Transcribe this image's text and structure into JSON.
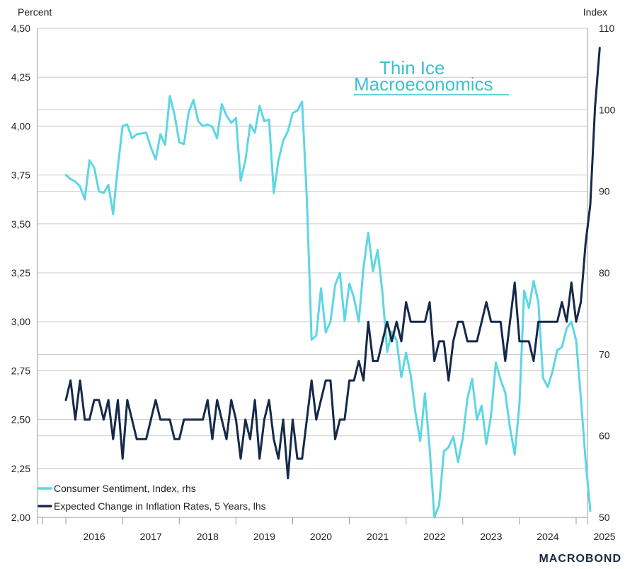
{
  "colors": {
    "sentiment": "#5dd6e4",
    "inflation": "#15294a",
    "grid": "#c8c8c8",
    "logo": "#3cbfd1",
    "brand": "#1a2a3e"
  },
  "logo": {
    "line1": "Thin Ice",
    "line2": "Macroeconomics"
  },
  "brand": "MACROBOND",
  "chart_data": {
    "type": "line",
    "left_axis": {
      "title": "Percent",
      "range": [
        2.0,
        4.5
      ],
      "ticks": [
        "4,50",
        "4,25",
        "4,00",
        "3,75",
        "3,50",
        "3,25",
        "3,00",
        "2,75",
        "2,50",
        "2,25",
        "2,00"
      ],
      "tick_values": [
        4.5,
        4.25,
        4.0,
        3.75,
        3.5,
        3.25,
        3.0,
        2.75,
        2.5,
        2.25,
        2.0
      ]
    },
    "right_axis": {
      "title": "Index",
      "range": [
        50,
        110
      ],
      "ticks": [
        "110",
        "100",
        "90",
        "80",
        "70",
        "60",
        "50"
      ],
      "tick_values": [
        110,
        100,
        90,
        80,
        70,
        60,
        50
      ]
    },
    "x_axis": {
      "range": [
        2015.5,
        2025.2
      ],
      "year_labels": [
        "2016",
        "2017",
        "2018",
        "2019",
        "2020",
        "2021",
        "2022",
        "2023",
        "2024",
        "2025"
      ],
      "year_centers": [
        2016.5,
        2017.5,
        2018.5,
        2019.5,
        2020.5,
        2021.5,
        2022.5,
        2023.5,
        2024.5,
        2025.5
      ],
      "boundaries": [
        2016,
        2017,
        2018,
        2019,
        2020,
        2021,
        2022,
        2023,
        2024,
        2025
      ]
    },
    "legend": [
      {
        "name": "Consumer Sentiment, Index, rhs",
        "series": "sentiment"
      },
      {
        "name": "Expected Change in Inflation Rates, 5 Years, lhs",
        "series": "inflation"
      }
    ],
    "series": [
      {
        "name": "Consumer Sentiment, Index, rhs",
        "key": "sentiment",
        "axis": "right",
        "start": 2016.0,
        "step": 0.08333,
        "values": [
          92.0,
          91.5,
          91.2,
          90.6,
          89.0,
          93.8,
          92.9,
          90.0,
          89.8,
          90.8,
          87.2,
          93.0,
          98.0,
          98.2,
          96.5,
          97.0,
          97.1,
          97.2,
          95.4,
          93.9,
          97.0,
          95.7,
          101.7,
          99.4,
          96.0,
          95.8,
          99.7,
          101.2,
          98.6,
          98.0,
          98.2,
          97.9,
          96.5,
          100.7,
          99.3,
          98.4,
          99.0,
          91.3,
          93.8,
          98.2,
          97.2,
          100.5,
          98.6,
          98.8,
          89.8,
          93.8,
          96.2,
          97.4,
          99.6,
          99.9,
          101.0,
          89.1,
          71.8,
          72.3,
          78.1,
          72.7,
          74.0,
          78.5,
          80.0,
          74.1,
          78.7,
          76.9,
          74.0,
          80.7,
          84.9,
          80.2,
          82.8,
          77.6,
          70.3,
          72.8,
          71.7,
          67.2,
          70.2,
          67.4,
          62.8,
          59.4,
          65.2,
          58.4,
          50.0,
          51.5,
          58.1,
          58.6,
          59.9,
          56.8,
          59.7,
          64.6,
          67.0,
          62.0,
          63.7,
          59.0,
          62.5,
          69.0,
          66.9,
          65.3,
          61.0,
          57.7,
          63.9,
          77.8,
          75.7,
          79.0,
          76.4,
          67.1,
          66.0,
          67.9,
          70.5,
          70.9,
          73.2,
          74.0,
          71.7,
          64.7,
          57.0,
          50.8
        ]
      },
      {
        "name": "Expected Change in Inflation Rates, 5 Years, lhs",
        "key": "inflation",
        "axis": "left",
        "start": 2016.0,
        "step": 0.08333,
        "values": [
          2.6,
          2.7,
          2.5,
          2.7,
          2.5,
          2.5,
          2.6,
          2.6,
          2.5,
          2.6,
          2.4,
          2.6,
          2.3,
          2.6,
          2.5,
          2.4,
          2.4,
          2.4,
          2.5,
          2.6,
          2.5,
          2.5,
          2.5,
          2.4,
          2.4,
          2.5,
          2.5,
          2.5,
          2.5,
          2.5,
          2.6,
          2.4,
          2.6,
          2.5,
          2.4,
          2.6,
          2.5,
          2.3,
          2.5,
          2.4,
          2.6,
          2.3,
          2.5,
          2.6,
          2.4,
          2.3,
          2.5,
          2.2,
          2.5,
          2.3,
          2.3,
          2.5,
          2.7,
          2.5,
          2.6,
          2.7,
          2.7,
          2.4,
          2.5,
          2.5,
          2.7,
          2.7,
          2.8,
          2.7,
          3.0,
          2.8,
          2.8,
          2.9,
          3.0,
          2.9,
          3.0,
          2.9,
          3.1,
          3.0,
          3.0,
          3.0,
          3.0,
          3.1,
          2.8,
          2.9,
          2.9,
          2.7,
          2.9,
          3.0,
          3.0,
          2.9,
          2.9,
          2.9,
          3.0,
          3.1,
          3.0,
          3.0,
          3.0,
          2.8,
          3.0,
          3.2,
          2.9,
          2.9,
          2.9,
          2.8,
          3.0,
          3.0,
          3.0,
          3.0,
          3.0,
          3.1,
          3.0,
          3.2,
          3.0,
          3.1,
          3.4,
          3.6,
          4.1,
          4.4
        ]
      }
    ]
  }
}
